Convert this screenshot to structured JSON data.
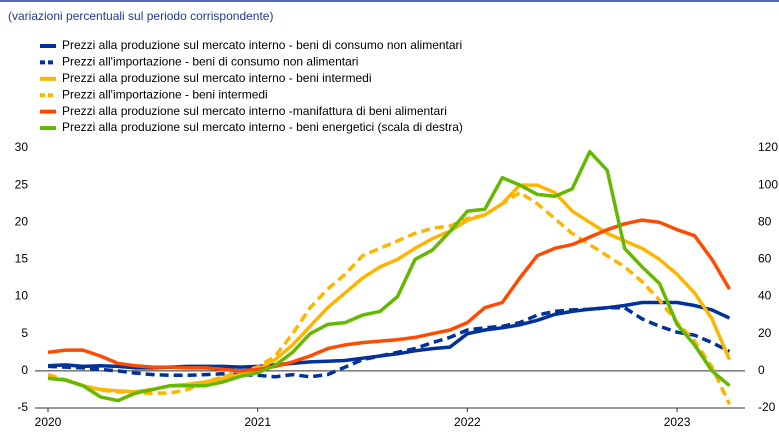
{
  "chart_data": {
    "type": "line",
    "subtitle": "(variazioni percentuali sul periodo corrispondente)",
    "x": [
      2020,
      2020.0833,
      2020.1667,
      2020.25,
      2020.3333,
      2020.4167,
      2020.5,
      2020.5833,
      2020.6667,
      2020.75,
      2020.8333,
      2020.9167,
      2021,
      2021.0833,
      2021.1667,
      2021.25,
      2021.3333,
      2021.4167,
      2021.5,
      2021.5833,
      2021.6667,
      2021.75,
      2021.8333,
      2021.9167,
      2022,
      2022.0833,
      2022.1667,
      2022.25,
      2022.3333,
      2022.4167,
      2022.5,
      2022.5833,
      2022.6667,
      2022.75,
      2022.8333,
      2022.9167,
      2023,
      2023.0833,
      2023.1667,
      2023.25
    ],
    "xlim": [
      2019.938,
      2023.324
    ],
    "xticks": [
      2020,
      2021,
      2022,
      2023
    ],
    "ylim": [
      -5,
      30
    ],
    "yticks": [
      30,
      25,
      20,
      15,
      10,
      5,
      0,
      -5
    ],
    "y2lim": [
      -20,
      120
    ],
    "y2ticks": [
      120,
      100,
      80,
      60,
      40,
      20,
      0,
      -20
    ],
    "series": [
      {
        "name": "Prezzi alla produzione sul mercato interno - beni di consumo non alimentari",
        "color": "#003299",
        "dash": false,
        "values": [
          0.7,
          0.8,
          0.6,
          0.7,
          0.6,
          0.4,
          0.4,
          0.5,
          0.6,
          0.6,
          0.6,
          0.5,
          0.6,
          0.8,
          1.0,
          1.2,
          1.3,
          1.4,
          1.7,
          2.0,
          2.3,
          2.7,
          3.0,
          3.2,
          5.0,
          5.5,
          5.8,
          6.2,
          6.8,
          7.6,
          8.0,
          8.3,
          8.5,
          8.8,
          9.2,
          9.2,
          9.2,
          8.8,
          8.2,
          7.1
        ]
      },
      {
        "name": "Prezzi all'importazione - beni di consumo non alimentari",
        "color": "#003299",
        "dash": true,
        "values": [
          0.6,
          0.5,
          0.4,
          0.2,
          0.0,
          -0.3,
          -0.5,
          -0.6,
          -0.6,
          -0.5,
          -0.4,
          -0.5,
          -0.6,
          -0.8,
          -0.5,
          -0.8,
          -0.5,
          0.5,
          1.5,
          2.0,
          2.5,
          3.0,
          3.8,
          4.5,
          5.5,
          5.8,
          6.0,
          6.5,
          7.5,
          8.0,
          8.2,
          8.3,
          8.5,
          8.5,
          7.0,
          6.0,
          5.2,
          4.8,
          3.8,
          2.6
        ]
      },
      {
        "name": "Prezzi alla produzione sul mercato interno - beni intermedi",
        "color": "#ffb400",
        "dash": false,
        "values": [
          -1.0,
          -1.2,
          -2.0,
          -2.5,
          -2.7,
          -2.8,
          -2.5,
          -2.0,
          -1.8,
          -1.5,
          -1.0,
          -0.5,
          0.2,
          1.5,
          3.5,
          6.0,
          8.5,
          10.5,
          12.5,
          14.0,
          15.0,
          16.5,
          17.8,
          18.8,
          20.3,
          21.0,
          22.5,
          25.0,
          25.0,
          24.0,
          21.5,
          20.0,
          18.5,
          17.5,
          16.5,
          15.0,
          13.0,
          10.5,
          7.0,
          1.5
        ]
      },
      {
        "name": "Prezzi all'importazione - beni intermedi",
        "color": "#ffb400",
        "dash": true,
        "values": [
          -0.5,
          -1.2,
          -2.0,
          -2.6,
          -2.8,
          -3.0,
          -3.0,
          -3.0,
          -2.5,
          -1.5,
          -0.8,
          -0.2,
          0.5,
          2.0,
          5.0,
          8.5,
          11.0,
          13.0,
          15.5,
          16.5,
          17.5,
          18.5,
          19.2,
          19.5,
          20.5,
          21.0,
          22.5,
          24.0,
          22.5,
          20.5,
          18.5,
          17.0,
          15.5,
          14.0,
          12.0,
          9.5,
          6.5,
          4.0,
          0.5,
          -4.5
        ]
      },
      {
        "name": "Prezzi alla produzione sul mercato interno -manifattura di beni alimentari",
        "color": "#ff4b00",
        "dash": false,
        "values": [
          2.5,
          2.8,
          2.8,
          2.0,
          1.0,
          0.7,
          0.5,
          0.5,
          0.4,
          0.4,
          0.2,
          0.0,
          0.2,
          0.6,
          1.2,
          2.0,
          3.0,
          3.5,
          3.8,
          4.0,
          4.2,
          4.5,
          5.0,
          5.5,
          6.5,
          8.5,
          9.2,
          12.5,
          15.5,
          16.5,
          17.0,
          18.0,
          19.0,
          19.8,
          20.3,
          20.0,
          19.0,
          18.2,
          15.0,
          11.0
        ]
      },
      {
        "name": "Prezzi alla produzione sul mercato interno - beni energetici (scala di destra)",
        "color": "#65b800",
        "dash": false,
        "axis": "y2",
        "values": [
          -4,
          -5,
          -8,
          -14,
          -16,
          -12,
          -10,
          -8,
          -8,
          -8,
          -6,
          -3,
          -1,
          3,
          10,
          20,
          25,
          26,
          30,
          32,
          40,
          60,
          65,
          75,
          86,
          87,
          104,
          100,
          95,
          94,
          98,
          118,
          108,
          66,
          56,
          47,
          25,
          14,
          0,
          -8
        ]
      }
    ]
  }
}
